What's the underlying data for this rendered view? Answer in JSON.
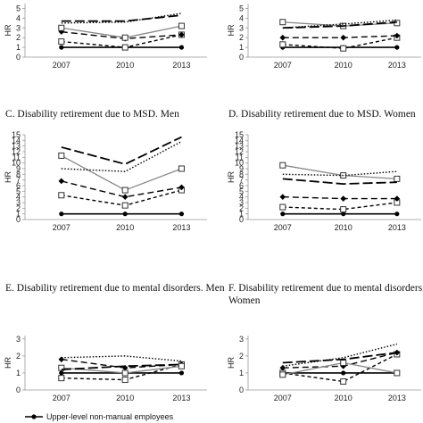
{
  "x_ticks": [
    "2007",
    "2010",
    "2013"
  ],
  "y_label": "HR",
  "legend": {
    "label": "Upper-level non-manual employees"
  },
  "series_styles": [
    {
      "key": "ref",
      "stroke": "#000000",
      "dash": "",
      "width": 1.6,
      "marker": "dot"
    },
    {
      "key": "s2",
      "stroke": "#000000",
      "dash": "4,3",
      "width": 1.4,
      "marker": "square-open"
    },
    {
      "key": "s3",
      "stroke": "#000000",
      "dash": "7,4",
      "width": 1.4,
      "marker": "diamond"
    },
    {
      "key": "s4",
      "stroke": "#888888",
      "dash": "",
      "width": 1.3,
      "marker": "square-open"
    },
    {
      "key": "s5",
      "stroke": "#000000",
      "dash": "11,4",
      "width": 1.8,
      "marker": "none"
    },
    {
      "key": "s6",
      "stroke": "#000000",
      "dash": "1.5,2",
      "width": 1.4,
      "marker": "none"
    }
  ],
  "chart_data": [
    {
      "type": "line",
      "title": "",
      "x": [
        "2007",
        "2010",
        "2013"
      ],
      "y_ticks": [
        0,
        1,
        2,
        3,
        4,
        5
      ],
      "ylim": [
        0,
        5.5
      ],
      "series": [
        {
          "values": [
            1.0,
            1.0,
            1.0
          ]
        },
        {
          "values": [
            1.6,
            1.0,
            2.3
          ]
        },
        {
          "values": [
            2.6,
            1.9,
            2.3
          ]
        },
        {
          "values": [
            3.0,
            2.0,
            3.2
          ]
        },
        {
          "values": [
            3.7,
            3.7,
            4.3
          ]
        },
        {
          "values": [
            3.5,
            3.6,
            4.5
          ]
        }
      ]
    },
    {
      "type": "line",
      "title": "",
      "x": [
        "2007",
        "2010",
        "2013"
      ],
      "y_ticks": [
        0,
        1,
        2,
        3,
        4,
        5
      ],
      "ylim": [
        0,
        5.5
      ],
      "series": [
        {
          "values": [
            1.0,
            1.0,
            1.0
          ]
        },
        {
          "values": [
            1.3,
            0.9,
            2.0
          ]
        },
        {
          "values": [
            2.0,
            2.0,
            2.2
          ]
        },
        {
          "values": [
            3.6,
            3.2,
            3.5
          ]
        },
        {
          "values": [
            3.0,
            3.2,
            3.6
          ]
        },
        {
          "values": [
            3.0,
            3.4,
            3.8
          ]
        }
      ]
    },
    {
      "type": "line",
      "title": "C. Disability retirement due to MSD. Men",
      "x": [
        "2007",
        "2010",
        "2013"
      ],
      "y_ticks": [
        0,
        1,
        2,
        3,
        4,
        5,
        6,
        7,
        8,
        9,
        10,
        11,
        12,
        13,
        14,
        15
      ],
      "ylim": [
        0,
        15
      ],
      "series": [
        {
          "values": [
            1.0,
            1.0,
            1.0
          ]
        },
        {
          "values": [
            4.3,
            2.5,
            5.2
          ]
        },
        {
          "values": [
            6.8,
            4.0,
            5.7
          ]
        },
        {
          "values": [
            11.3,
            5.2,
            9.0
          ]
        },
        {
          "values": [
            12.8,
            9.8,
            14.6
          ]
        },
        {
          "values": [
            9.0,
            8.5,
            13.8
          ]
        }
      ]
    },
    {
      "type": "line",
      "title": "D. Disability retirement due to MSD. Women",
      "x": [
        "2007",
        "2010",
        "2013"
      ],
      "y_ticks": [
        0,
        1,
        2,
        3,
        4,
        5,
        6,
        7,
        8,
        9,
        10,
        11,
        12,
        13,
        14,
        15
      ],
      "ylim": [
        0,
        15
      ],
      "series": [
        {
          "values": [
            1.0,
            1.0,
            1.0
          ]
        },
        {
          "values": [
            2.2,
            1.8,
            3.0
          ]
        },
        {
          "values": [
            4.0,
            3.7,
            3.7
          ]
        },
        {
          "values": [
            9.6,
            7.8,
            7.2
          ]
        },
        {
          "values": [
            7.2,
            6.3,
            6.6
          ]
        },
        {
          "values": [
            8.0,
            7.8,
            8.5
          ]
        }
      ]
    },
    {
      "type": "line",
      "title": "E. Disability retirement due to mental disorders. Men",
      "x": [
        "2007",
        "2010",
        "2013"
      ],
      "y_ticks": [
        0,
        1,
        2,
        3
      ],
      "ylim": [
        0,
        3.2
      ],
      "series": [
        {
          "values": [
            1.0,
            1.0,
            1.0
          ]
        },
        {
          "values": [
            0.7,
            0.6,
            1.5
          ]
        },
        {
          "values": [
            1.8,
            1.3,
            1.5
          ]
        },
        {
          "values": [
            1.3,
            1.0,
            1.4
          ]
        },
        {
          "values": [
            1.2,
            1.4,
            1.5
          ]
        },
        {
          "values": [
            1.9,
            2.0,
            1.7
          ]
        }
      ]
    },
    {
      "type": "line",
      "title": "F. Disability retirement due to mental disorders.",
      "title_line2": "Women",
      "x": [
        "2007",
        "2010",
        "2013"
      ],
      "y_ticks": [
        0,
        1,
        2,
        3
      ],
      "ylim": [
        0,
        3.2
      ],
      "series": [
        {
          "values": [
            1.0,
            1.0,
            1.0
          ]
        },
        {
          "values": [
            1.0,
            0.5,
            2.1
          ]
        },
        {
          "values": [
            1.3,
            1.4,
            2.2
          ]
        },
        {
          "values": [
            0.9,
            1.6,
            1.0
          ]
        },
        {
          "values": [
            1.6,
            1.8,
            2.2
          ]
        },
        {
          "values": [
            1.4,
            1.9,
            2.7
          ]
        }
      ]
    }
  ]
}
